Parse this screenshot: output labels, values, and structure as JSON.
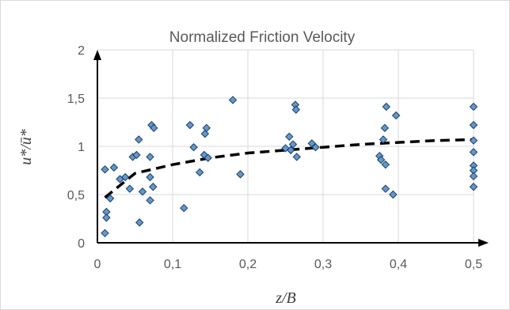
{
  "chart_data": {
    "type": "scatter",
    "title": "Normalized Friction Velocity",
    "xlabel": "z/B",
    "ylabel": "u*/ū*",
    "xlim": [
      0,
      0.5
    ],
    "ylim": [
      0,
      2
    ],
    "x_ticks": [
      "0",
      "0,1",
      "0,2",
      "0,3",
      "0,4",
      "0,5"
    ],
    "y_ticks": [
      "0",
      "0,5",
      "1",
      "1,5",
      "2"
    ],
    "grid": true,
    "legend": "none",
    "colors": {
      "marker_fill": "#5b9bd5",
      "marker_stroke": "#1f3a5f",
      "grid": "#d9d9d9",
      "axis": "#000000",
      "trend": "#000000"
    },
    "series": [
      {
        "values": [
          [
            0.01,
            0.1
          ],
          [
            0.01,
            0.76
          ],
          [
            0.012,
            0.32
          ],
          [
            0.012,
            0.26
          ],
          [
            0.017,
            0.46
          ],
          [
            0.022,
            0.78
          ],
          [
            0.03,
            0.66
          ],
          [
            0.037,
            0.68
          ],
          [
            0.043,
            0.56
          ],
          [
            0.047,
            0.89
          ],
          [
            0.052,
            0.91
          ],
          [
            0.055,
            1.07
          ],
          [
            0.056,
            0.21
          ],
          [
            0.06,
            0.53
          ],
          [
            0.07,
            0.68
          ],
          [
            0.07,
            0.89
          ],
          [
            0.07,
            0.44
          ],
          [
            0.072,
            1.22
          ],
          [
            0.074,
            0.58
          ],
          [
            0.075,
            1.19
          ],
          [
            0.115,
            0.36
          ],
          [
            0.123,
            1.22
          ],
          [
            0.128,
            0.99
          ],
          [
            0.136,
            0.73
          ],
          [
            0.142,
            0.91
          ],
          [
            0.143,
            1.13
          ],
          [
            0.145,
            1.19
          ],
          [
            0.147,
            0.88
          ],
          [
            0.18,
            1.48
          ],
          [
            0.19,
            0.71
          ],
          [
            0.25,
            0.98
          ],
          [
            0.255,
            1.1
          ],
          [
            0.257,
            0.96
          ],
          [
            0.26,
            1.02
          ],
          [
            0.263,
            1.43
          ],
          [
            0.264,
            1.38
          ],
          [
            0.265,
            0.89
          ],
          [
            0.285,
            1.03
          ],
          [
            0.29,
            0.99
          ],
          [
            0.375,
            0.9
          ],
          [
            0.377,
            0.86
          ],
          [
            0.38,
            1.07
          ],
          [
            0.382,
            1.19
          ],
          [
            0.383,
            0.81
          ],
          [
            0.383,
            0.56
          ],
          [
            0.384,
            1.41
          ],
          [
            0.393,
            0.5
          ],
          [
            0.397,
            1.32
          ],
          [
            0.5,
            1.41
          ],
          [
            0.5,
            1.22
          ],
          [
            0.5,
            1.06
          ],
          [
            0.5,
            0.94
          ],
          [
            0.5,
            0.8
          ],
          [
            0.5,
            0.75
          ],
          [
            0.5,
            0.69
          ],
          [
            0.5,
            0.58
          ]
        ]
      }
    ],
    "trendline": {
      "style": "dashed",
      "x": [
        0.01,
        0.05,
        0.1,
        0.15,
        0.2,
        0.25,
        0.3,
        0.35,
        0.4,
        0.45,
        0.5
      ],
      "y": [
        0.47,
        0.72,
        0.81,
        0.88,
        0.93,
        0.96,
        0.99,
        1.02,
        1.04,
        1.06,
        1.07
      ]
    }
  }
}
